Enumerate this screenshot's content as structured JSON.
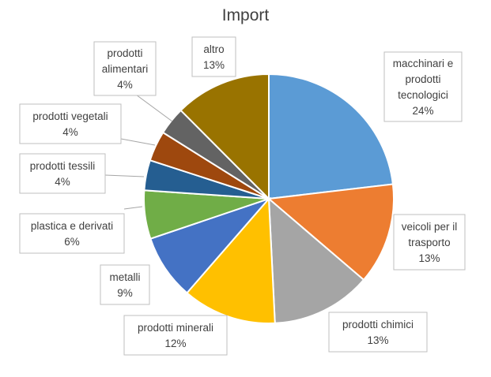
{
  "chart_data": {
    "type": "pie",
    "title": "Import",
    "slices": [
      {
        "label": [
          "macchinari e",
          "prodotti",
          "tecnologici"
        ],
        "pct_label": "24%",
        "value": 23.6,
        "color": "#5B9BD5"
      },
      {
        "label": [
          "veicoli per il",
          "trasporto"
        ],
        "pct_label": "13%",
        "value": 13.4,
        "color": "#ED7D31"
      },
      {
        "label": [
          "prodotti chimici"
        ],
        "pct_label": "13%",
        "value": 13.2,
        "color": "#A5A5A5"
      },
      {
        "label": [
          "prodotti minerali"
        ],
        "pct_label": "12%",
        "value": 12.4,
        "color": "#FFC000"
      },
      {
        "label": [
          "metalli"
        ],
        "pct_label": "9%",
        "value": 8.6,
        "color": "#4472C4"
      },
      {
        "label": [
          "plastica e derivati"
        ],
        "pct_label": "6%",
        "value": 6.4,
        "color": "#70AD47"
      },
      {
        "label": [
          "prodotti tessili"
        ],
        "pct_label": "4%",
        "value": 4.0,
        "color": "#255E91"
      },
      {
        "label": [
          "prodotti vegetali"
        ],
        "pct_label": "4%",
        "value": 4.0,
        "color": "#9E480E"
      },
      {
        "label": [
          "prodotti",
          "alimentari"
        ],
        "pct_label": "4%",
        "value": 3.7,
        "color": "#636363"
      },
      {
        "label": [
          "altro"
        ],
        "pct_label": "13%",
        "value": 12.7,
        "color": "#997300"
      }
    ],
    "legend": "none"
  }
}
